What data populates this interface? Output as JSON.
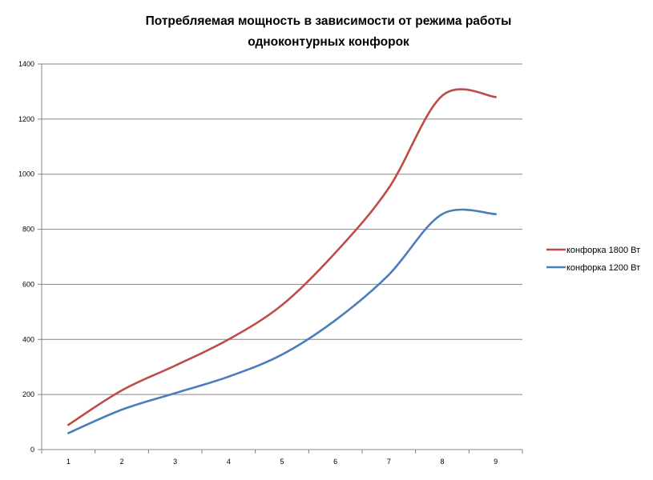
{
  "chart_data": {
    "type": "line",
    "title_lines": [
      "Потребляемая мощность в зависимости от режима работы",
      "одноконтурных конфорок"
    ],
    "xlabel": "",
    "ylabel": "",
    "x": [
      1,
      2,
      3,
      4,
      5,
      6,
      7,
      8,
      9
    ],
    "ylim": [
      0,
      1400
    ],
    "yticks": [
      0,
      200,
      400,
      600,
      800,
      1000,
      1200,
      1400
    ],
    "grid": "horizontal",
    "legend_position": "right",
    "series": [
      {
        "name": "конфорка 1800 Вт",
        "color": "#be4b48",
        "values": [
          90,
          215,
          305,
          400,
          525,
          715,
          950,
          1285,
          1280
        ]
      },
      {
        "name": "конфорка 1200 Вт",
        "color": "#4a7ebb",
        "values": [
          60,
          145,
          205,
          265,
          345,
          470,
          635,
          855,
          855
        ]
      }
    ]
  }
}
